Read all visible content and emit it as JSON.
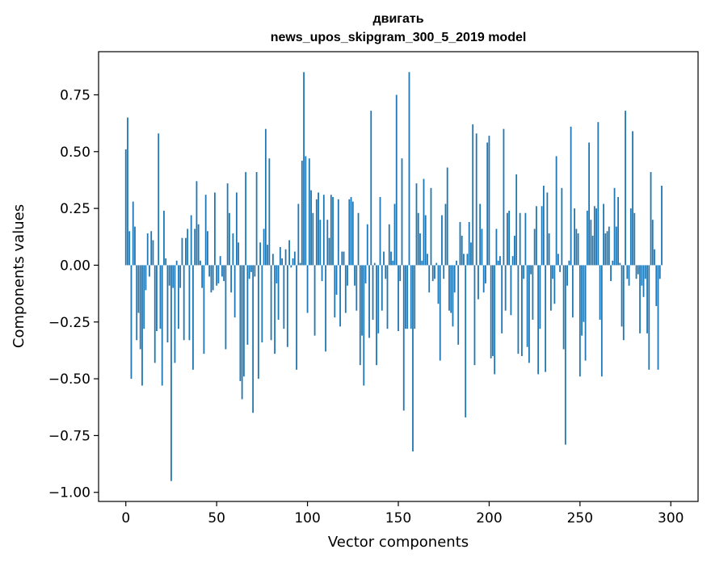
{
  "chart_data": {
    "type": "bar",
    "title": "двигать",
    "subtitle": "news_upos_skipgram_300_5_2019 model",
    "xlabel": "Vector components",
    "ylabel": "Components values",
    "xlim": [
      -15,
      315
    ],
    "ylim": [
      -1.04,
      0.94
    ],
    "xticks": [
      0,
      50,
      100,
      150,
      200,
      250,
      300
    ],
    "yticks": [
      -1.0,
      -0.75,
      -0.5,
      -0.25,
      0.0,
      0.25,
      0.5,
      0.75
    ],
    "ytick_labels": [
      "−1.00",
      "−0.75",
      "−0.50",
      "−0.25",
      "0.00",
      "0.25",
      "0.50",
      "0.75"
    ],
    "grid": false,
    "bar_color": "#1f77b4",
    "values": [
      0.51,
      0.65,
      0.15,
      -0.5,
      0.28,
      0.17,
      -0.33,
      -0.21,
      -0.37,
      -0.53,
      -0.28,
      -0.11,
      0.14,
      -0.05,
      0.15,
      0.11,
      -0.43,
      -0.29,
      0.58,
      -0.28,
      -0.53,
      0.24,
      0.03,
      -0.34,
      -0.09,
      -0.95,
      -0.1,
      -0.43,
      0.02,
      -0.28,
      -0.1,
      0.12,
      -0.33,
      0.12,
      0.16,
      -0.33,
      0.22,
      -0.46,
      0.16,
      0.37,
      0.18,
      0.02,
      -0.1,
      -0.39,
      0.31,
      0.15,
      -0.05,
      -0.12,
      -0.11,
      0.32,
      -0.09,
      -0.08,
      0.04,
      -0.05,
      -0.07,
      -0.37,
      0.36,
      0.23,
      -0.12,
      0.14,
      -0.23,
      0.32,
      0.1,
      -0.51,
      -0.59,
      -0.49,
      0.41,
      -0.35,
      -0.06,
      -0.03,
      -0.65,
      -0.05,
      0.41,
      -0.5,
      0.1,
      -0.34,
      0.16,
      0.6,
      0.09,
      0.47,
      -0.33,
      0.05,
      -0.39,
      -0.08,
      -0.24,
      0.08,
      0.03,
      -0.28,
      0.07,
      -0.36,
      0.11,
      -0.01,
      0.03,
      0.06,
      -0.46,
      0.27,
      0.01,
      0.46,
      0.85,
      0.48,
      -0.21,
      0.47,
      0.33,
      0.23,
      -0.31,
      0.29,
      0.32,
      0.2,
      -0.07,
      0.31,
      -0.38,
      0.2,
      0.12,
      0.31,
      0.3,
      -0.23,
      -0.13,
      0.29,
      -0.27,
      0.06,
      0.06,
      -0.21,
      -0.09,
      0.29,
      0.3,
      0.28,
      -0.09,
      -0.2,
      0.23,
      -0.44,
      -0.31,
      -0.53,
      -0.08,
      0.18,
      -0.32,
      0.68,
      -0.24,
      0.01,
      -0.44,
      -0.3,
      0.3,
      -0.2,
      0.06,
      -0.06,
      -0.28,
      0.18,
      0.06,
      0.02,
      0.27,
      0.75,
      -0.29,
      -0.07,
      0.47,
      -0.64,
      -0.28,
      -0.28,
      0.85,
      -0.28,
      -0.82,
      -0.28,
      0.36,
      0.23,
      0.14,
      0.02,
      0.38,
      0.22,
      0.05,
      -0.12,
      0.34,
      -0.07,
      -0.06,
      0.01,
      -0.17,
      -0.42,
      0.22,
      -0.06,
      0.27,
      0.43,
      -0.2,
      -0.21,
      -0.27,
      -0.12,
      0.02,
      -0.35,
      0.19,
      0.13,
      0.05,
      -0.67,
      0.05,
      0.19,
      0.1,
      0.62,
      -0.44,
      0.58,
      -0.15,
      0.27,
      0.16,
      -0.12,
      -0.08,
      0.54,
      0.57,
      -0.41,
      -0.4,
      -0.48,
      0.16,
      0.02,
      0.04,
      -0.3,
      0.6,
      -0.2,
      0.23,
      0.24,
      -0.22,
      0.04,
      0.13,
      0.4,
      -0.39,
      0.23,
      -0.4,
      -0.06,
      0.23,
      -0.36,
      -0.43,
      -0.04,
      -0.24,
      0.16,
      0.26,
      -0.48,
      -0.28,
      0.26,
      0.35,
      -0.47,
      0.32,
      0.14,
      -0.2,
      -0.06,
      -0.17,
      0.48,
      0.05,
      -0.03,
      0.34,
      -0.37,
      -0.79,
      -0.09,
      0.02,
      0.61,
      -0.23,
      0.25,
      0.16,
      0.14,
      -0.49,
      -0.31,
      -0.25,
      -0.42,
      0.24,
      0.54,
      0.2,
      0.13,
      0.26,
      0.25,
      0.63,
      -0.24,
      -0.49,
      0.27,
      0.14,
      0.15,
      0.17,
      -0.07,
      0.02,
      0.34,
      0.17,
      0.3,
      0.01,
      -0.27,
      -0.33,
      0.68,
      -0.06,
      -0.09,
      0.25,
      0.59,
      0.23,
      -0.06,
      -0.04,
      -0.3,
      -0.09,
      -0.14,
      -0.06,
      -0.3,
      -0.46,
      0.41,
      0.2,
      0.07,
      -0.18,
      -0.46,
      -0.06,
      0.35
    ]
  }
}
